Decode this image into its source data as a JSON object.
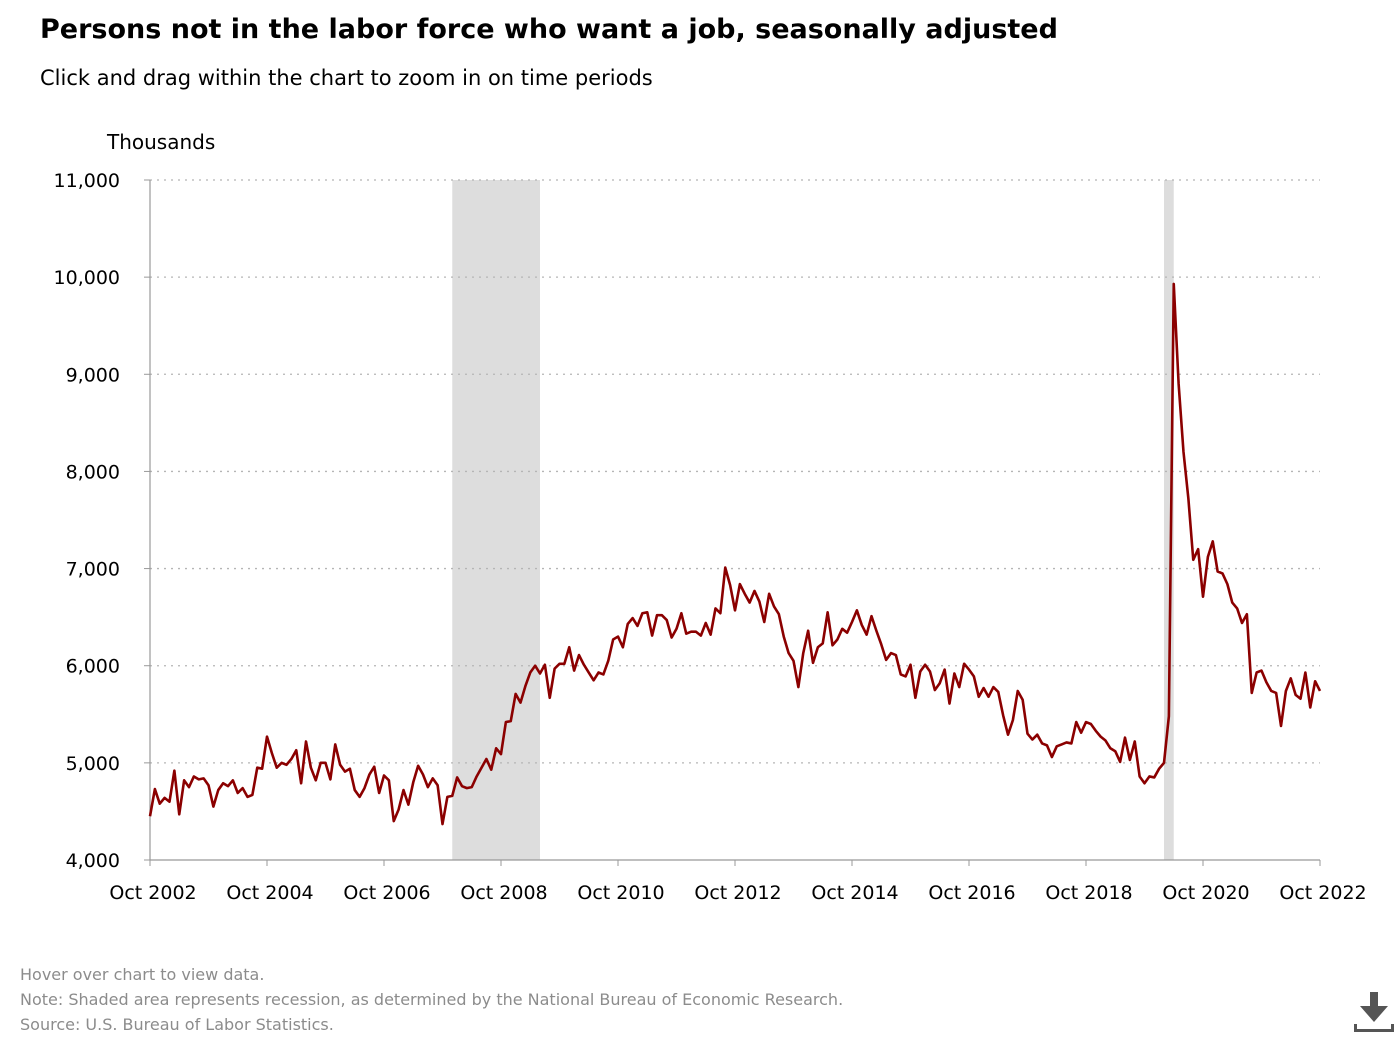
{
  "title": "Persons not in the labor force who want a job, seasonally adjusted",
  "subtitle": "Click and drag within the chart to zoom in on time periods",
  "footer": {
    "hover_note": "Hover over chart to view data.",
    "note": "Note: Shaded area represents recession, as determined by the National Bureau of Economic Research.",
    "source": "Source: U.S. Bureau of Labor Statistics."
  },
  "download_icon": "download-icon",
  "chart_data": {
    "type": "line",
    "ylabel": "Thousands",
    "xlabel": "",
    "ylim": [
      4000,
      11000
    ],
    "xlim": [
      "2002-10",
      "2022-10"
    ],
    "yticks": [
      4000,
      5000,
      6000,
      7000,
      8000,
      9000,
      10000,
      11000
    ],
    "ytick_labels": [
      "4,000",
      "5,000",
      "6,000",
      "7,000",
      "8,000",
      "9,000",
      "10,000",
      "11,000"
    ],
    "xticks": [
      "2002-10",
      "2004-10",
      "2006-10",
      "2008-10",
      "2010-10",
      "2012-10",
      "2014-10",
      "2016-10",
      "2018-10",
      "2020-10",
      "2022-10"
    ],
    "xtick_labels": [
      "Oct 2002",
      "Oct 2004",
      "Oct 2006",
      "Oct 2008",
      "Oct 2010",
      "Oct 2012",
      "Oct 2014",
      "Oct 2016",
      "Oct 2018",
      "Oct 2020",
      "Oct 2022"
    ],
    "grid": "horizontal dotted",
    "line_color": "#8b0000",
    "recession_color": "#dddddd",
    "recessions": [
      {
        "start": "2007-12",
        "end": "2009-06"
      },
      {
        "start": "2020-02",
        "end": "2020-04"
      }
    ],
    "series": [
      {
        "points": [
          [
            "2002-10",
            4450
          ],
          [
            "2002-11",
            4730
          ],
          [
            "2002-12",
            4580
          ],
          [
            "2003-01",
            4640
          ],
          [
            "2003-02",
            4600
          ],
          [
            "2003-03",
            4920
          ],
          [
            "2003-04",
            4470
          ],
          [
            "2003-05",
            4820
          ],
          [
            "2003-06",
            4750
          ],
          [
            "2003-07",
            4860
          ],
          [
            "2003-08",
            4830
          ],
          [
            "2003-09",
            4840
          ],
          [
            "2003-10",
            4770
          ],
          [
            "2003-11",
            4550
          ],
          [
            "2003-12",
            4720
          ],
          [
            "2004-01",
            4790
          ],
          [
            "2004-02",
            4760
          ],
          [
            "2004-03",
            4820
          ],
          [
            "2004-04",
            4690
          ],
          [
            "2004-05",
            4740
          ],
          [
            "2004-06",
            4650
          ],
          [
            "2004-07",
            4670
          ],
          [
            "2004-08",
            4950
          ],
          [
            "2004-09",
            4940
          ],
          [
            "2004-10",
            5270
          ],
          [
            "2004-11",
            5100
          ],
          [
            "2004-12",
            4950
          ],
          [
            "2005-01",
            5000
          ],
          [
            "2005-02",
            4980
          ],
          [
            "2005-03",
            5040
          ],
          [
            "2005-04",
            5130
          ],
          [
            "2005-05",
            4790
          ],
          [
            "2005-06",
            5220
          ],
          [
            "2005-07",
            4950
          ],
          [
            "2005-08",
            4820
          ],
          [
            "2005-09",
            5000
          ],
          [
            "2005-10",
            5000
          ],
          [
            "2005-11",
            4830
          ],
          [
            "2005-12",
            5190
          ],
          [
            "2006-01",
            4980
          ],
          [
            "2006-02",
            4910
          ],
          [
            "2006-03",
            4940
          ],
          [
            "2006-04",
            4720
          ],
          [
            "2006-05",
            4650
          ],
          [
            "2006-06",
            4740
          ],
          [
            "2006-07",
            4880
          ],
          [
            "2006-08",
            4960
          ],
          [
            "2006-09",
            4690
          ],
          [
            "2006-10",
            4870
          ],
          [
            "2006-11",
            4820
          ],
          [
            "2006-12",
            4400
          ],
          [
            "2007-01",
            4520
          ],
          [
            "2007-02",
            4720
          ],
          [
            "2007-03",
            4570
          ],
          [
            "2007-04",
            4800
          ],
          [
            "2007-05",
            4970
          ],
          [
            "2007-06",
            4880
          ],
          [
            "2007-07",
            4750
          ],
          [
            "2007-08",
            4840
          ],
          [
            "2007-09",
            4770
          ],
          [
            "2007-10",
            4370
          ],
          [
            "2007-11",
            4650
          ],
          [
            "2007-12",
            4660
          ],
          [
            "2008-01",
            4850
          ],
          [
            "2008-02",
            4760
          ],
          [
            "2008-03",
            4740
          ],
          [
            "2008-04",
            4750
          ],
          [
            "2008-05",
            4860
          ],
          [
            "2008-06",
            4950
          ],
          [
            "2008-07",
            5040
          ],
          [
            "2008-08",
            4930
          ],
          [
            "2008-09",
            5150
          ],
          [
            "2008-10",
            5090
          ],
          [
            "2008-11",
            5420
          ],
          [
            "2008-12",
            5430
          ],
          [
            "2009-01",
            5710
          ],
          [
            "2009-02",
            5620
          ],
          [
            "2009-03",
            5790
          ],
          [
            "2009-04",
            5930
          ],
          [
            "2009-05",
            6000
          ],
          [
            "2009-06",
            5920
          ],
          [
            "2009-07",
            6010
          ],
          [
            "2009-08",
            5670
          ],
          [
            "2009-09",
            5970
          ],
          [
            "2009-10",
            6020
          ],
          [
            "2009-11",
            6020
          ],
          [
            "2009-12",
            6190
          ],
          [
            "2010-01",
            5950
          ],
          [
            "2010-02",
            6110
          ],
          [
            "2010-03",
            6010
          ],
          [
            "2010-04",
            5930
          ],
          [
            "2010-05",
            5850
          ],
          [
            "2010-06",
            5930
          ],
          [
            "2010-07",
            5910
          ],
          [
            "2010-08",
            6050
          ],
          [
            "2010-09",
            6270
          ],
          [
            "2010-10",
            6300
          ],
          [
            "2010-11",
            6190
          ],
          [
            "2010-12",
            6430
          ],
          [
            "2011-01",
            6490
          ],
          [
            "2011-02",
            6410
          ],
          [
            "2011-03",
            6540
          ],
          [
            "2011-04",
            6550
          ],
          [
            "2011-05",
            6310
          ],
          [
            "2011-06",
            6520
          ],
          [
            "2011-07",
            6520
          ],
          [
            "2011-08",
            6470
          ],
          [
            "2011-09",
            6290
          ],
          [
            "2011-10",
            6380
          ],
          [
            "2011-11",
            6540
          ],
          [
            "2011-12",
            6330
          ],
          [
            "2012-01",
            6350
          ],
          [
            "2012-02",
            6350
          ],
          [
            "2012-03",
            6310
          ],
          [
            "2012-04",
            6440
          ],
          [
            "2012-05",
            6320
          ],
          [
            "2012-06",
            6590
          ],
          [
            "2012-07",
            6540
          ],
          [
            "2012-08",
            7010
          ],
          [
            "2012-09",
            6830
          ],
          [
            "2012-10",
            6570
          ],
          [
            "2012-11",
            6840
          ],
          [
            "2012-12",
            6740
          ],
          [
            "2013-01",
            6650
          ],
          [
            "2013-02",
            6770
          ],
          [
            "2013-03",
            6660
          ],
          [
            "2013-04",
            6450
          ],
          [
            "2013-05",
            6740
          ],
          [
            "2013-06",
            6610
          ],
          [
            "2013-07",
            6530
          ],
          [
            "2013-08",
            6300
          ],
          [
            "2013-09",
            6130
          ],
          [
            "2013-10",
            6050
          ],
          [
            "2013-11",
            5780
          ],
          [
            "2013-12",
            6130
          ],
          [
            "2014-01",
            6360
          ],
          [
            "2014-02",
            6030
          ],
          [
            "2014-03",
            6190
          ],
          [
            "2014-04",
            6230
          ],
          [
            "2014-05",
            6550
          ],
          [
            "2014-06",
            6210
          ],
          [
            "2014-07",
            6270
          ],
          [
            "2014-08",
            6380
          ],
          [
            "2014-09",
            6340
          ],
          [
            "2014-10",
            6450
          ],
          [
            "2014-11",
            6570
          ],
          [
            "2014-12",
            6420
          ],
          [
            "2015-01",
            6320
          ],
          [
            "2015-02",
            6510
          ],
          [
            "2015-03",
            6360
          ],
          [
            "2015-04",
            6220
          ],
          [
            "2015-05",
            6060
          ],
          [
            "2015-06",
            6130
          ],
          [
            "2015-07",
            6110
          ],
          [
            "2015-08",
            5910
          ],
          [
            "2015-09",
            5890
          ],
          [
            "2015-10",
            6010
          ],
          [
            "2015-11",
            5670
          ],
          [
            "2015-12",
            5940
          ],
          [
            "2016-01",
            6010
          ],
          [
            "2016-02",
            5940
          ],
          [
            "2016-03",
            5750
          ],
          [
            "2016-04",
            5820
          ],
          [
            "2016-05",
            5960
          ],
          [
            "2016-06",
            5610
          ],
          [
            "2016-07",
            5920
          ],
          [
            "2016-08",
            5780
          ],
          [
            "2016-09",
            6020
          ],
          [
            "2016-10",
            5960
          ],
          [
            "2016-11",
            5890
          ],
          [
            "2016-12",
            5680
          ],
          [
            "2017-01",
            5770
          ],
          [
            "2017-02",
            5680
          ],
          [
            "2017-03",
            5780
          ],
          [
            "2017-04",
            5730
          ],
          [
            "2017-05",
            5490
          ],
          [
            "2017-06",
            5290
          ],
          [
            "2017-07",
            5440
          ],
          [
            "2017-08",
            5740
          ],
          [
            "2017-09",
            5650
          ],
          [
            "2017-10",
            5300
          ],
          [
            "2017-11",
            5240
          ],
          [
            "2017-12",
            5290
          ],
          [
            "2018-01",
            5200
          ],
          [
            "2018-02",
            5180
          ],
          [
            "2018-03",
            5060
          ],
          [
            "2018-04",
            5170
          ],
          [
            "2018-05",
            5190
          ],
          [
            "2018-06",
            5210
          ],
          [
            "2018-07",
            5200
          ],
          [
            "2018-08",
            5420
          ],
          [
            "2018-09",
            5310
          ],
          [
            "2018-10",
            5420
          ],
          [
            "2018-11",
            5400
          ],
          [
            "2018-12",
            5330
          ],
          [
            "2019-01",
            5270
          ],
          [
            "2019-02",
            5230
          ],
          [
            "2019-03",
            5150
          ],
          [
            "2019-04",
            5120
          ],
          [
            "2019-05",
            5010
          ],
          [
            "2019-06",
            5260
          ],
          [
            "2019-07",
            5030
          ],
          [
            "2019-08",
            5220
          ],
          [
            "2019-09",
            4860
          ],
          [
            "2019-10",
            4790
          ],
          [
            "2019-11",
            4860
          ],
          [
            "2019-12",
            4850
          ],
          [
            "2020-01",
            4940
          ],
          [
            "2020-02",
            5000
          ],
          [
            "2020-03",
            5480
          ],
          [
            "2020-04",
            9930
          ],
          [
            "2020-05",
            8900
          ],
          [
            "2020-06",
            8200
          ],
          [
            "2020-07",
            7720
          ],
          [
            "2020-08",
            7090
          ],
          [
            "2020-09",
            7200
          ],
          [
            "2020-10",
            6710
          ],
          [
            "2020-11",
            7120
          ],
          [
            "2020-12",
            7280
          ],
          [
            "2021-01",
            6970
          ],
          [
            "2021-02",
            6950
          ],
          [
            "2021-03",
            6840
          ],
          [
            "2021-04",
            6650
          ],
          [
            "2021-05",
            6590
          ],
          [
            "2021-06",
            6440
          ],
          [
            "2021-07",
            6530
          ],
          [
            "2021-08",
            5720
          ],
          [
            "2021-09",
            5930
          ],
          [
            "2021-10",
            5950
          ],
          [
            "2021-11",
            5830
          ],
          [
            "2021-12",
            5740
          ],
          [
            "2022-01",
            5720
          ],
          [
            "2022-02",
            5380
          ],
          [
            "2022-03",
            5740
          ],
          [
            "2022-04",
            5870
          ],
          [
            "2022-05",
            5700
          ],
          [
            "2022-06",
            5660
          ],
          [
            "2022-07",
            5930
          ],
          [
            "2022-08",
            5570
          ],
          [
            "2022-09",
            5840
          ],
          [
            "2022-10",
            5740
          ]
        ]
      }
    ]
  }
}
